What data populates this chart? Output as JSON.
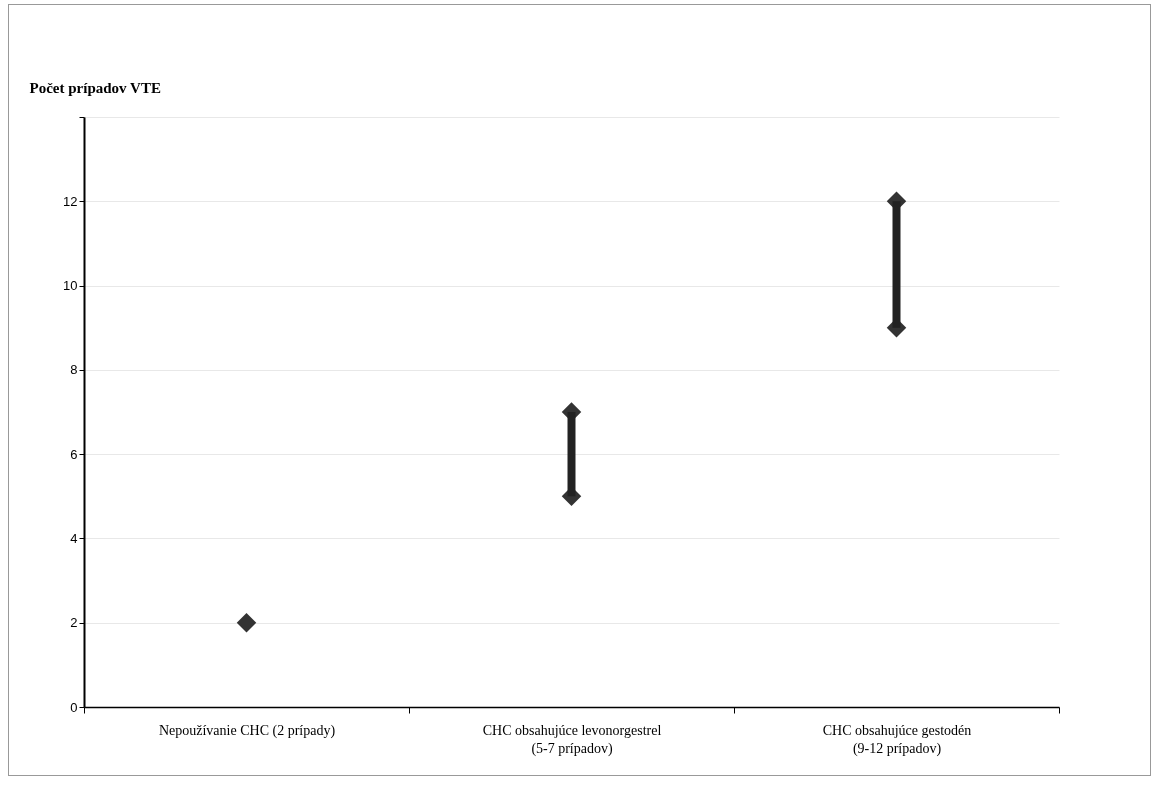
{
  "chart_data": {
    "type": "bar",
    "ylabel": "Počet prípadov VTE",
    "categories": [
      "Nepoužívanie CHC (2 prípady)",
      "CHC obsahujúce levonorgestrel (5-7 prípadov)",
      "CHC obsahujúce gestodén (9-12 prípadov)"
    ],
    "series": [
      {
        "color": "#222222",
        "base": [
          null,
          5,
          9
        ],
        "values": [
          null,
          2,
          3
        ]
      },
      {
        "type": "scatter",
        "color": "#333333",
        "x": [
          "Nepoužívanie CHC (2 prípady)",
          "CHC obsahujúce levonorgestrel (5-7 prípadov)",
          "CHC obsahujúce gestodén (9-12 prípadov)"
        ],
        "values": [
          2,
          5,
          9
        ]
      },
      {
        "type": "scatter",
        "color": "#333333",
        "x": [
          "Nepoužívanie CHC (2 prípady)",
          "CHC obsahujúce levonorgestrel (5-7 prípadov)",
          "CHC obsahujúce gestodén (9-12 prípadov)"
        ],
        "values": [
          null,
          7,
          12
        ]
      }
    ],
    "ylim": [
      0,
      14
    ],
    "yticks": [
      0,
      2,
      4,
      6,
      8,
      10,
      12,
      {
        "value": 14,
        "label": null
      }
    ],
    "grid": "y",
    "marker": "diamond"
  }
}
